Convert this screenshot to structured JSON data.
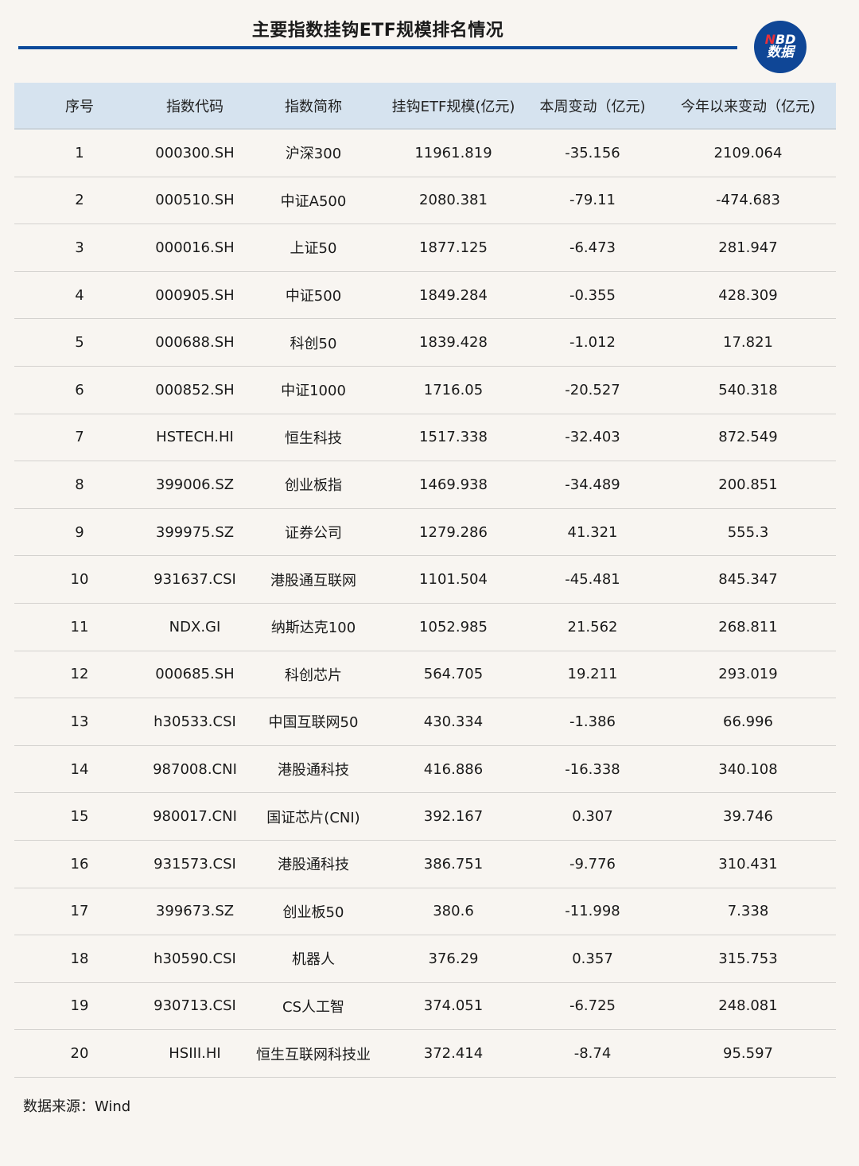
{
  "title": "主要指数挂钩ETF规模排名情况",
  "logo": {
    "line1_accent": "N",
    "line1_rest": "BD",
    "line2": "数据",
    "color": "#0f4696"
  },
  "source": "数据来源：Wind",
  "chart_data": {
    "type": "table",
    "columns": [
      "序号",
      "指数代码",
      "指数简称",
      "挂钩ETF规模(亿元)",
      "本周变动（亿元)",
      "今年以来变动（亿元)"
    ],
    "rows": [
      [
        "1",
        "000300.SH",
        "沪深300",
        "11961.819",
        "-35.156",
        "2109.064"
      ],
      [
        "2",
        "000510.SH",
        "中证A500",
        "2080.381",
        "-79.11",
        "-474.683"
      ],
      [
        "3",
        "000016.SH",
        "上证50",
        "1877.125",
        "-6.473",
        "281.947"
      ],
      [
        "4",
        "000905.SH",
        "中证500",
        "1849.284",
        "-0.355",
        "428.309"
      ],
      [
        "5",
        "000688.SH",
        "科创50",
        "1839.428",
        "-1.012",
        "17.821"
      ],
      [
        "6",
        "000852.SH",
        "中证1000",
        "1716.05",
        "-20.527",
        "540.318"
      ],
      [
        "7",
        "HSTECH.HI",
        "恒生科技",
        "1517.338",
        "-32.403",
        "872.549"
      ],
      [
        "8",
        "399006.SZ",
        "创业板指",
        "1469.938",
        "-34.489",
        "200.851"
      ],
      [
        "9",
        "399975.SZ",
        "证券公司",
        "1279.286",
        "41.321",
        "555.3"
      ],
      [
        "10",
        "931637.CSI",
        "港股通互联网",
        "1101.504",
        "-45.481",
        "845.347"
      ],
      [
        "11",
        "NDX.GI",
        "纳斯达克100",
        "1052.985",
        "21.562",
        "268.811"
      ],
      [
        "12",
        "000685.SH",
        "科创芯片",
        "564.705",
        "19.211",
        "293.019"
      ],
      [
        "13",
        "h30533.CSI",
        "中国互联网50",
        "430.334",
        "-1.386",
        "66.996"
      ],
      [
        "14",
        "987008.CNI",
        "港股通科技",
        "416.886",
        "-16.338",
        "340.108"
      ],
      [
        "15",
        "980017.CNI",
        "国证芯片(CNI)",
        "392.167",
        "0.307",
        "39.746"
      ],
      [
        "16",
        "931573.CSI",
        "港股通科技",
        "386.751",
        "-9.776",
        "310.431"
      ],
      [
        "17",
        "399673.SZ",
        "创业板50",
        "380.6",
        "-11.998",
        "7.338"
      ],
      [
        "18",
        "h30590.CSI",
        "机器人",
        "376.29",
        "0.357",
        "315.753"
      ],
      [
        "19",
        "930713.CSI",
        "CS人工智",
        "374.051",
        "-6.725",
        "248.081"
      ],
      [
        "20",
        "HSIII.HI",
        "恒生互联网科技业",
        "372.414",
        "-8.74",
        "95.597"
      ]
    ]
  }
}
